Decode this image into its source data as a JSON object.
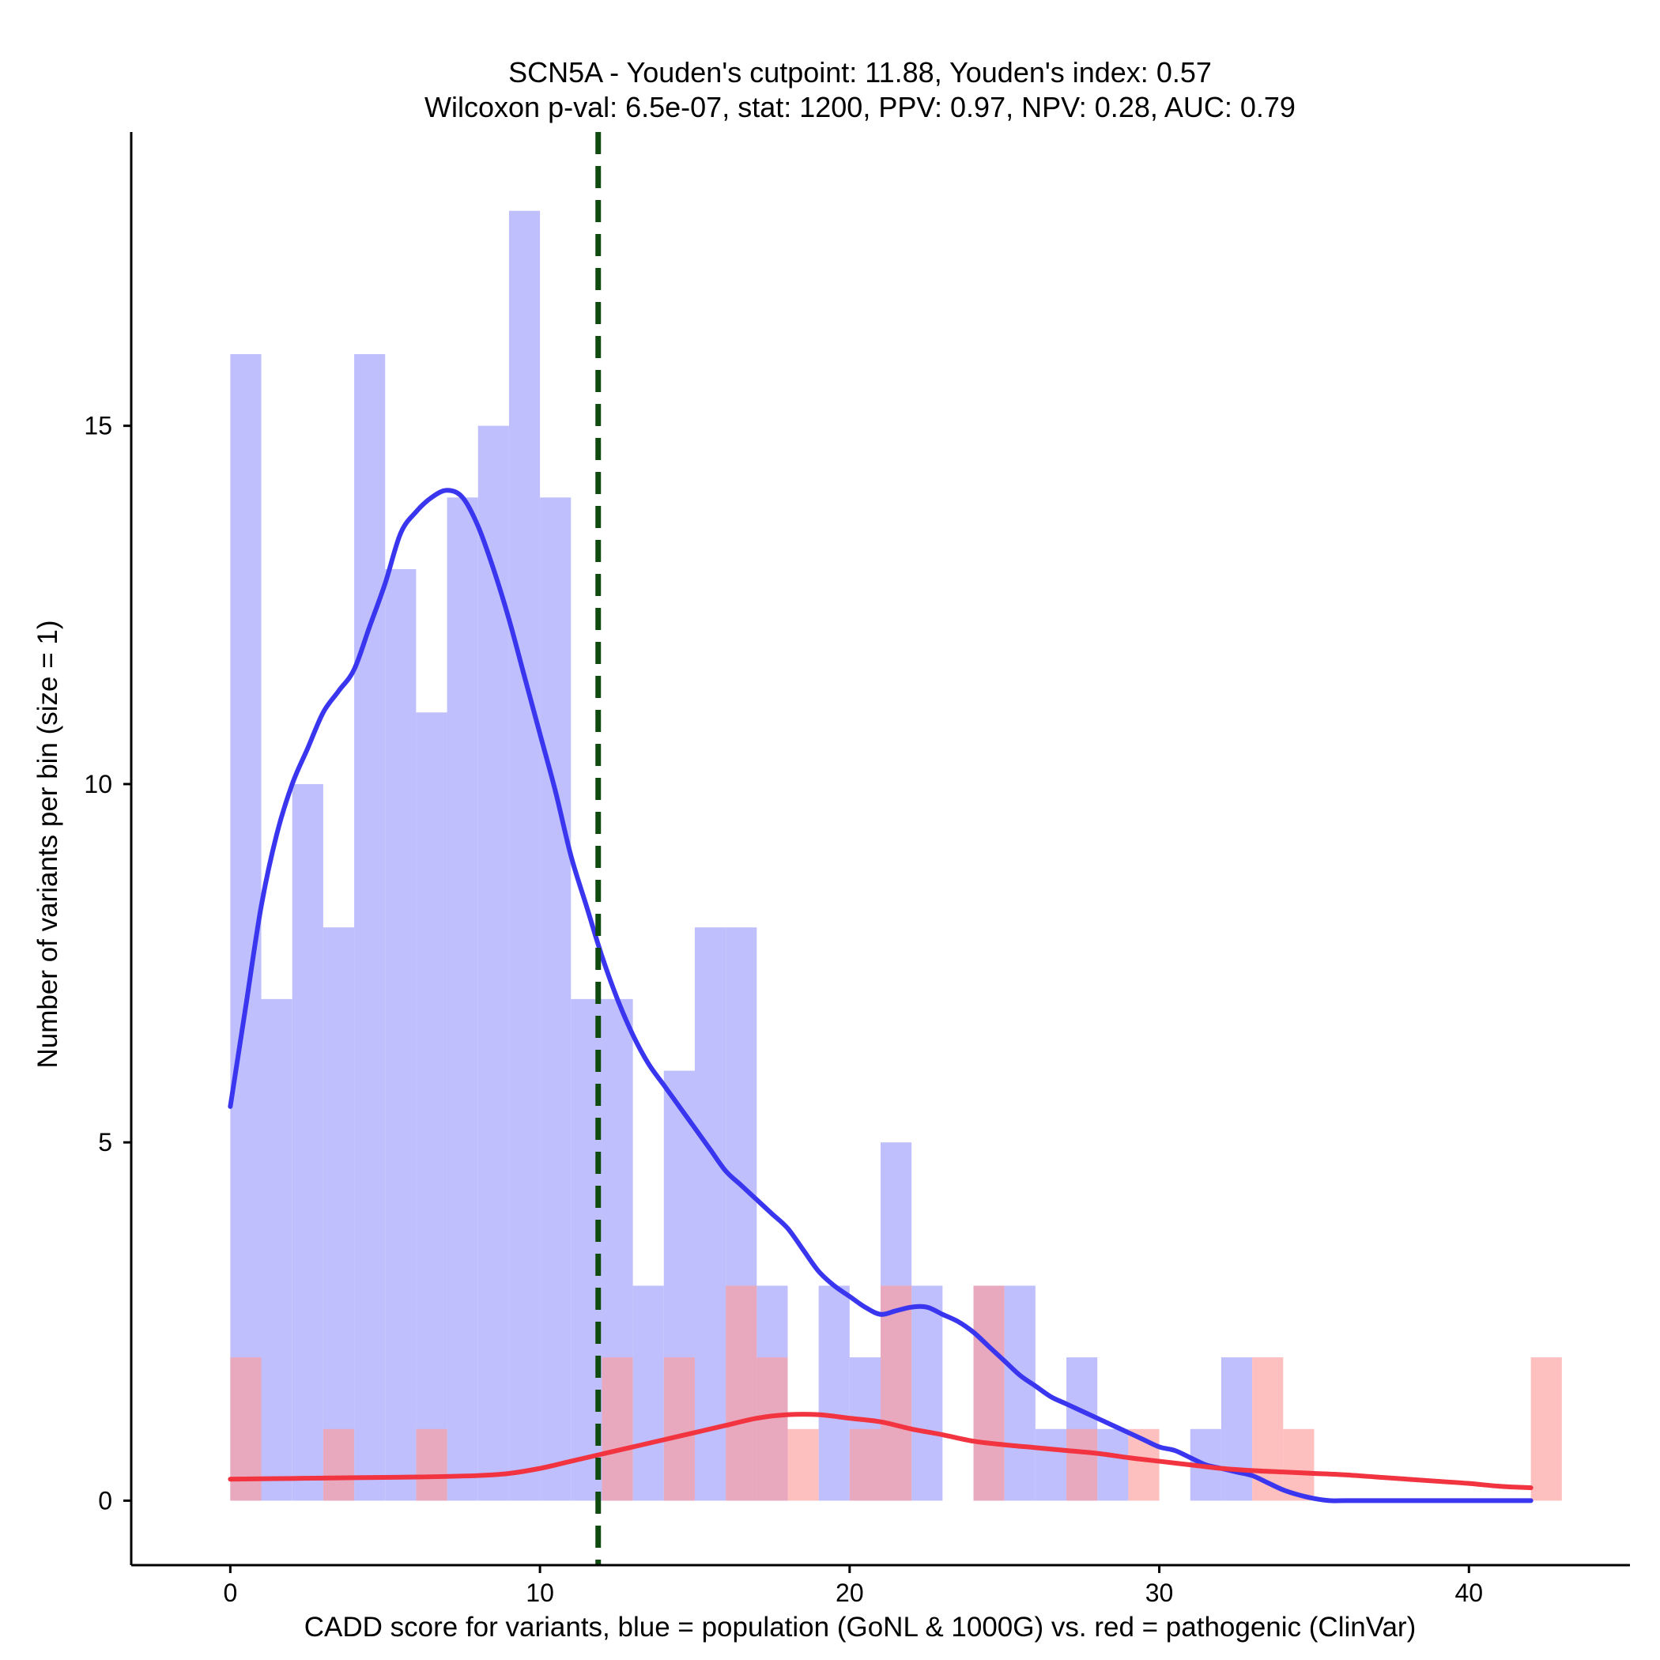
{
  "chart_data": {
    "type": "bar",
    "title_line1": "SCN5A - Youden's cutpoint: 11.88, Youden's index: 0.57",
    "title_line2": "Wilcoxon p-val: 6.5e-07, stat: 1200, PPV: 0.97, NPV: 0.28, AUC: 0.79",
    "xlabel": "CADD score for variants, blue = population (GoNL & 1000G) vs. red = pathogenic (ClinVar)",
    "ylabel": "Number of variants per bin (size = 1)",
    "xlim": [
      -3.2,
      45.2
    ],
    "ylim": [
      -0.9,
      19.1
    ],
    "x_ticks": [
      0,
      10,
      20,
      30,
      40
    ],
    "y_ticks": [
      0,
      5,
      10,
      15
    ],
    "bin_size": 1,
    "cutpoint": 11.88,
    "colors": {
      "population_bar": "#bfbffd",
      "pathogenic_bar": "#fe9c9c",
      "population_line": "#3a36f0",
      "pathogenic_line": "#f23340",
      "cutpoint_line": "#0f4a0f"
    },
    "series": [
      {
        "name": "population (GoNL & 1000G)",
        "bins": [
          {
            "x": 0,
            "count": 16
          },
          {
            "x": 1,
            "count": 7
          },
          {
            "x": 2,
            "count": 10
          },
          {
            "x": 3,
            "count": 8
          },
          {
            "x": 4,
            "count": 16
          },
          {
            "x": 5,
            "count": 13
          },
          {
            "x": 6,
            "count": 11
          },
          {
            "x": 7,
            "count": 14
          },
          {
            "x": 8,
            "count": 15
          },
          {
            "x": 9,
            "count": 18
          },
          {
            "x": 10,
            "count": 14
          },
          {
            "x": 11,
            "count": 7
          },
          {
            "x": 12,
            "count": 7
          },
          {
            "x": 13,
            "count": 3
          },
          {
            "x": 14,
            "count": 6
          },
          {
            "x": 15,
            "count": 8
          },
          {
            "x": 16,
            "count": 8
          },
          {
            "x": 17,
            "count": 3
          },
          {
            "x": 19,
            "count": 3
          },
          {
            "x": 20,
            "count": 2
          },
          {
            "x": 21,
            "count": 5
          },
          {
            "x": 22,
            "count": 3
          },
          {
            "x": 24,
            "count": 3
          },
          {
            "x": 25,
            "count": 3
          },
          {
            "x": 26,
            "count": 1
          },
          {
            "x": 27,
            "count": 2
          },
          {
            "x": 28,
            "count": 1
          },
          {
            "x": 31,
            "count": 1
          },
          {
            "x": 32,
            "count": 2
          }
        ],
        "density": [
          [
            0,
            5.5
          ],
          [
            0.5,
            6.9
          ],
          [
            1,
            8.3
          ],
          [
            1.5,
            9.3
          ],
          [
            2,
            10.0
          ],
          [
            2.5,
            10.5
          ],
          [
            3,
            11.0
          ],
          [
            3.5,
            11.3
          ],
          [
            4,
            11.6
          ],
          [
            4.5,
            12.2
          ],
          [
            5,
            12.8
          ],
          [
            5.5,
            13.5
          ],
          [
            6,
            13.8
          ],
          [
            6.5,
            14.0
          ],
          [
            7,
            14.1
          ],
          [
            7.5,
            14.0
          ],
          [
            8,
            13.6
          ],
          [
            8.5,
            13.0
          ],
          [
            9,
            12.3
          ],
          [
            9.5,
            11.5
          ],
          [
            10,
            10.7
          ],
          [
            10.5,
            9.9
          ],
          [
            11,
            9.0
          ],
          [
            11.5,
            8.3
          ],
          [
            12,
            7.6
          ],
          [
            12.5,
            7.0
          ],
          [
            13,
            6.5
          ],
          [
            13.5,
            6.1
          ],
          [
            14,
            5.8
          ],
          [
            14.5,
            5.5
          ],
          [
            15,
            5.2
          ],
          [
            15.5,
            4.9
          ],
          [
            16,
            4.6
          ],
          [
            16.5,
            4.4
          ],
          [
            17,
            4.2
          ],
          [
            17.5,
            4.0
          ],
          [
            18,
            3.8
          ],
          [
            18.5,
            3.5
          ],
          [
            19,
            3.2
          ],
          [
            19.5,
            3.0
          ],
          [
            20,
            2.85
          ],
          [
            20.5,
            2.7
          ],
          [
            21,
            2.6
          ],
          [
            21.5,
            2.65
          ],
          [
            22,
            2.7
          ],
          [
            22.5,
            2.7
          ],
          [
            23,
            2.6
          ],
          [
            23.5,
            2.5
          ],
          [
            24,
            2.35
          ],
          [
            24.5,
            2.15
          ],
          [
            25,
            1.95
          ],
          [
            25.5,
            1.75
          ],
          [
            26,
            1.6
          ],
          [
            26.5,
            1.45
          ],
          [
            27,
            1.35
          ],
          [
            27.5,
            1.25
          ],
          [
            28,
            1.15
          ],
          [
            28.5,
            1.05
          ],
          [
            29,
            0.95
          ],
          [
            29.5,
            0.85
          ],
          [
            30,
            0.75
          ],
          [
            30.5,
            0.7
          ],
          [
            31,
            0.6
          ],
          [
            31.5,
            0.5
          ],
          [
            32,
            0.45
          ],
          [
            32.5,
            0.4
          ],
          [
            33,
            0.35
          ],
          [
            33.5,
            0.25
          ],
          [
            34,
            0.15
          ],
          [
            34.5,
            0.08
          ],
          [
            35,
            0.03
          ],
          [
            35.5,
            0.0
          ],
          [
            36,
            0.0
          ],
          [
            37,
            0.0
          ],
          [
            38,
            0.0
          ],
          [
            39,
            0.0
          ],
          [
            40,
            0.0
          ],
          [
            41,
            0.0
          ],
          [
            42,
            0.0
          ]
        ]
      },
      {
        "name": "pathogenic (ClinVar)",
        "bins": [
          {
            "x": 0,
            "count": 2
          },
          {
            "x": 3,
            "count": 1
          },
          {
            "x": 6,
            "count": 1
          },
          {
            "x": 12,
            "count": 2
          },
          {
            "x": 14,
            "count": 2
          },
          {
            "x": 16,
            "count": 3
          },
          {
            "x": 17,
            "count": 2
          },
          {
            "x": 18,
            "count": 1
          },
          {
            "x": 20,
            "count": 1
          },
          {
            "x": 21,
            "count": 3
          },
          {
            "x": 24,
            "count": 3
          },
          {
            "x": 27,
            "count": 1
          },
          {
            "x": 29,
            "count": 1
          },
          {
            "x": 33,
            "count": 2
          },
          {
            "x": 34,
            "count": 1
          },
          {
            "x": 42,
            "count": 2
          }
        ],
        "density": [
          [
            0,
            0.3
          ],
          [
            2,
            0.31
          ],
          [
            4,
            0.32
          ],
          [
            6,
            0.33
          ],
          [
            8,
            0.35
          ],
          [
            9,
            0.38
          ],
          [
            10,
            0.45
          ],
          [
            11,
            0.55
          ],
          [
            12,
            0.65
          ],
          [
            13,
            0.75
          ],
          [
            14,
            0.85
          ],
          [
            15,
            0.95
          ],
          [
            16,
            1.05
          ],
          [
            17,
            1.15
          ],
          [
            18,
            1.2
          ],
          [
            19,
            1.2
          ],
          [
            20,
            1.15
          ],
          [
            21,
            1.1
          ],
          [
            22,
            1.0
          ],
          [
            23,
            0.92
          ],
          [
            24,
            0.83
          ],
          [
            25,
            0.78
          ],
          [
            26,
            0.74
          ],
          [
            27,
            0.7
          ],
          [
            28,
            0.66
          ],
          [
            29,
            0.6
          ],
          [
            30,
            0.55
          ],
          [
            31,
            0.5
          ],
          [
            32,
            0.45
          ],
          [
            33,
            0.42
          ],
          [
            34,
            0.4
          ],
          [
            35,
            0.38
          ],
          [
            36,
            0.36
          ],
          [
            37,
            0.33
          ],
          [
            38,
            0.3
          ],
          [
            39,
            0.27
          ],
          [
            40,
            0.24
          ],
          [
            41,
            0.2
          ],
          [
            42,
            0.18
          ]
        ]
      }
    ]
  }
}
